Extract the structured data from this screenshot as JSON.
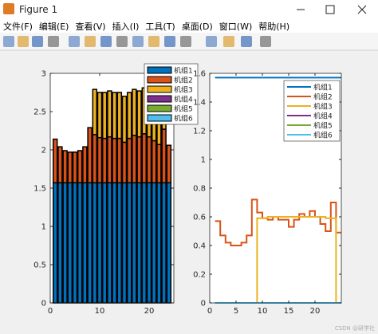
{
  "window": {
    "title": "Figure 1",
    "menu": [
      "文件(F)",
      "编辑(E)",
      "查看(V)",
      "插入(I)",
      "工具(T)",
      "桌面(D)",
      "窗口(W)",
      "帮助(H)"
    ],
    "watermark": "CSDN @研学社"
  },
  "chart_data": [
    {
      "type": "bar",
      "stacked": true,
      "x": [
        1,
        2,
        3,
        4,
        5,
        6,
        7,
        8,
        9,
        10,
        11,
        12,
        13,
        14,
        15,
        16,
        17,
        18,
        19,
        20,
        21,
        22,
        23,
        24
      ],
      "xlim": [
        0,
        25
      ],
      "xticks": [
        0,
        10,
        20
      ],
      "ylim": [
        0,
        3
      ],
      "yticks": [
        0,
        0.5,
        1,
        1.5,
        2,
        2.5,
        3
      ],
      "legend": "upper right",
      "series": [
        {
          "name": "机组1",
          "color": "#0072BD",
          "values": [
            1.57,
            1.57,
            1.57,
            1.57,
            1.57,
            1.57,
            1.57,
            1.57,
            1.57,
            1.57,
            1.57,
            1.57,
            1.57,
            1.57,
            1.57,
            1.57,
            1.57,
            1.57,
            1.57,
            1.57,
            1.57,
            1.57,
            1.57,
            1.57
          ]
        },
        {
          "name": "机组2",
          "color": "#D95319",
          "values": [
            0.57,
            0.47,
            0.42,
            0.4,
            0.4,
            0.42,
            0.47,
            0.72,
            0.63,
            0.59,
            0.58,
            0.6,
            0.58,
            0.58,
            0.53,
            0.58,
            0.62,
            0.6,
            0.64,
            0.6,
            0.55,
            0.5,
            0.7,
            0.49
          ]
        },
        {
          "name": "机组3",
          "color": "#EDB120",
          "values": [
            0,
            0,
            0,
            0,
            0,
            0,
            0,
            0,
            0.59,
            0.59,
            0.6,
            0.6,
            0.6,
            0.6,
            0.6,
            0.6,
            0.6,
            0.6,
            0.6,
            0.6,
            0.6,
            0.59,
            0.59,
            0
          ]
        },
        {
          "name": "机组4",
          "color": "#7E2F8E",
          "values": [
            0,
            0,
            0,
            0,
            0,
            0,
            0,
            0,
            0,
            0,
            0,
            0,
            0,
            0,
            0,
            0,
            0,
            0,
            0,
            0,
            0,
            0,
            0,
            0
          ]
        },
        {
          "name": "机组5",
          "color": "#77AC30",
          "values": [
            0,
            0,
            0,
            0,
            0,
            0,
            0,
            0,
            0,
            0,
            0,
            0,
            0,
            0,
            0,
            0,
            0,
            0,
            0,
            0,
            0,
            0,
            0,
            0
          ]
        },
        {
          "name": "机组6",
          "color": "#4DBEEE",
          "values": [
            0,
            0,
            0,
            0,
            0,
            0,
            0,
            0,
            0,
            0,
            0,
            0,
            0,
            0,
            0,
            0,
            0,
            0,
            0,
            0,
            0,
            0,
            0,
            0
          ]
        }
      ]
    },
    {
      "type": "stairs",
      "x": [
        1,
        2,
        3,
        4,
        5,
        6,
        7,
        8,
        9,
        10,
        11,
        12,
        13,
        14,
        15,
        16,
        17,
        18,
        19,
        20,
        21,
        22,
        23,
        24
      ],
      "xlim": [
        0,
        25
      ],
      "xticks": [
        0,
        5,
        10,
        15,
        20
      ],
      "ylim": [
        0,
        1.6
      ],
      "yticks": [
        0,
        0.2,
        0.4,
        0.6,
        0.8,
        1,
        1.2,
        1.4,
        1.6
      ],
      "legend": "upper right",
      "series": [
        {
          "name": "机组1",
          "color": "#0072BD",
          "values": [
            1.57,
            1.57,
            1.57,
            1.57,
            1.57,
            1.57,
            1.57,
            1.57,
            1.57,
            1.57,
            1.57,
            1.57,
            1.57,
            1.57,
            1.57,
            1.57,
            1.57,
            1.57,
            1.57,
            1.57,
            1.57,
            1.57,
            1.57,
            1.57
          ]
        },
        {
          "name": "机组2",
          "color": "#D95319",
          "values": [
            0.57,
            0.47,
            0.42,
            0.4,
            0.4,
            0.42,
            0.47,
            0.72,
            0.63,
            0.59,
            0.58,
            0.6,
            0.58,
            0.58,
            0.53,
            0.58,
            0.62,
            0.6,
            0.64,
            0.6,
            0.55,
            0.5,
            0.7,
            0.49
          ]
        },
        {
          "name": "机组3",
          "color": "#EDB120",
          "values": [
            0,
            0,
            0,
            0,
            0,
            0,
            0,
            0,
            0.59,
            0.59,
            0.6,
            0.6,
            0.6,
            0.6,
            0.6,
            0.6,
            0.6,
            0.6,
            0.6,
            0.6,
            0.6,
            0.59,
            0.59,
            0
          ]
        },
        {
          "name": "机组4",
          "color": "#7E2F8E",
          "values": [
            0,
            0,
            0,
            0,
            0,
            0,
            0,
            0,
            0,
            0,
            0,
            0,
            0,
            0,
            0,
            0,
            0,
            0,
            0,
            0,
            0,
            0,
            0,
            0
          ]
        },
        {
          "name": "机组5",
          "color": "#77AC30",
          "values": [
            0,
            0,
            0,
            0,
            0,
            0,
            0,
            0,
            0,
            0,
            0,
            0,
            0,
            0,
            0,
            0,
            0,
            0,
            0,
            0,
            0,
            0,
            0,
            0
          ]
        },
        {
          "name": "机组6",
          "color": "#4DBEEE",
          "values": [
            0,
            0,
            0,
            0,
            0,
            0,
            0,
            0,
            0,
            0,
            0,
            0,
            0,
            0,
            0,
            0,
            0,
            0,
            0,
            0,
            0,
            0,
            0,
            0
          ]
        }
      ]
    }
  ]
}
